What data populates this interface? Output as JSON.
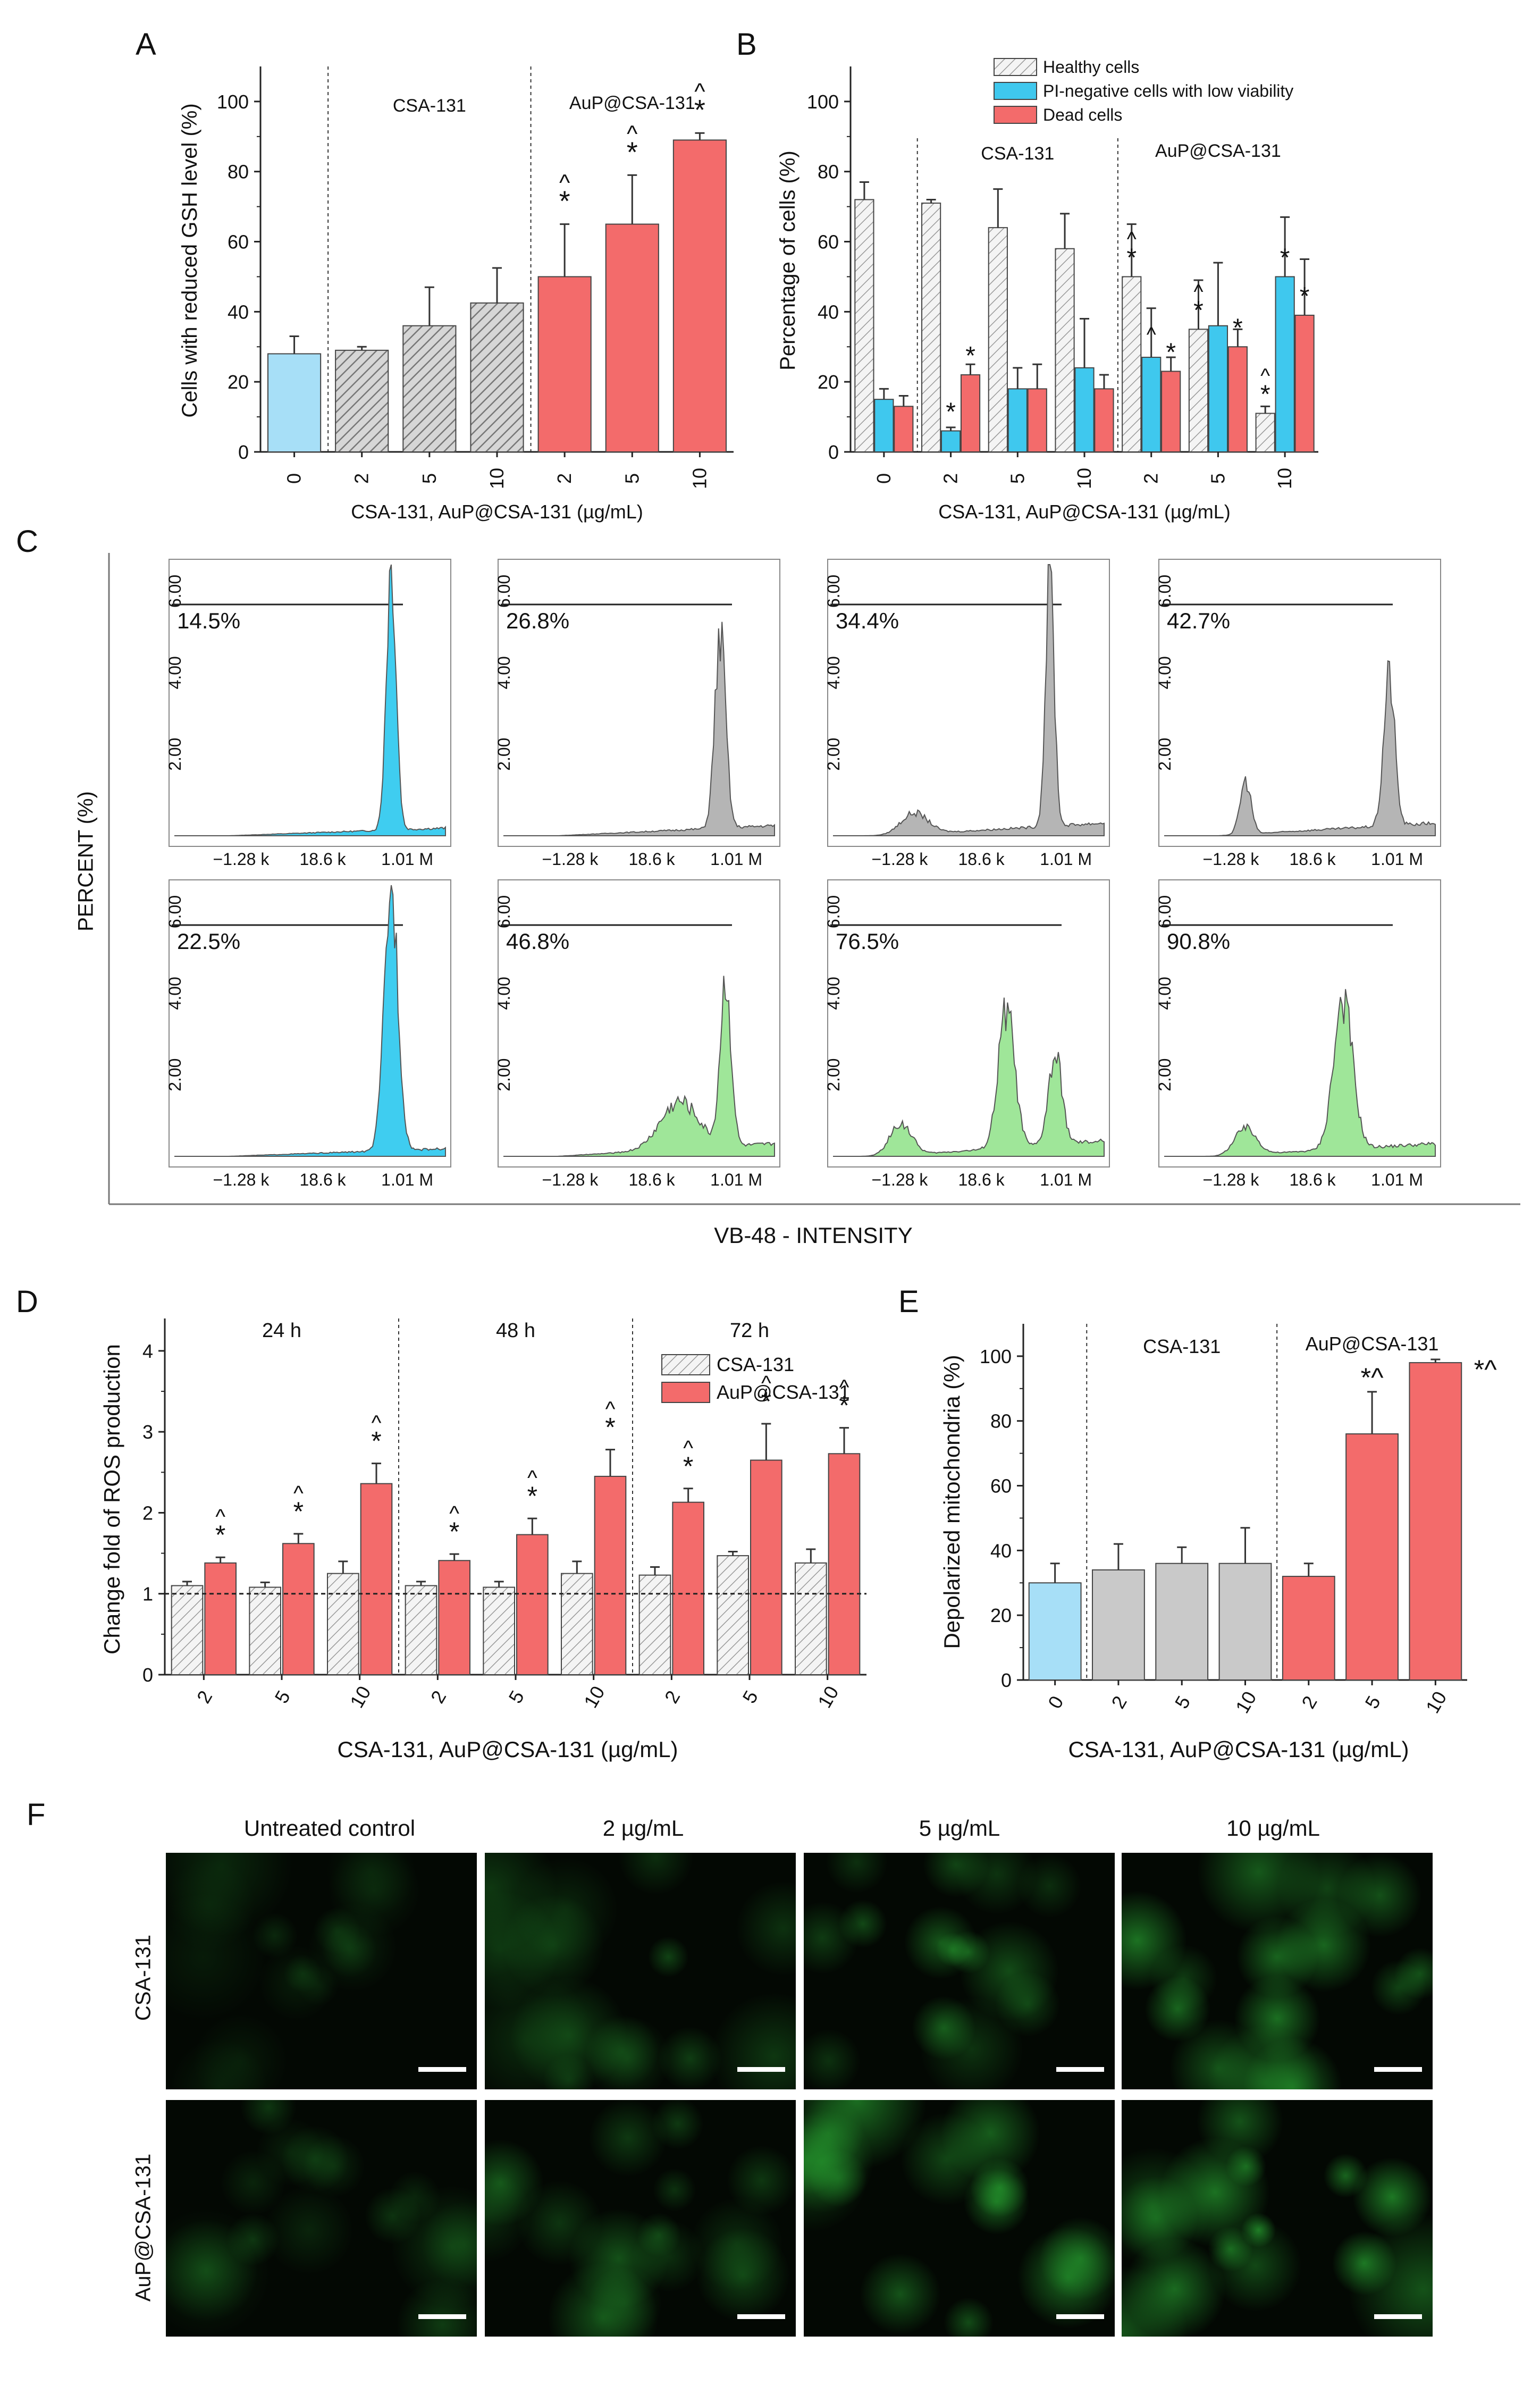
{
  "panels": {
    "A": "A",
    "B": "B",
    "C": "C",
    "D": "D",
    "E": "E",
    "F": "F"
  },
  "colors": {
    "control_blue": "#a7dff7",
    "hatch_gray": "#c9c9c9",
    "red": "#f36b6b",
    "cyan": "#3fc8ee",
    "flow_cyan": "#3fcdf0",
    "flow_gray": "#b5b5b5",
    "flow_green": "#9fe699",
    "fluor_green": "#2fc23a"
  },
  "chart_data": [
    {
      "id": "A",
      "type": "bar",
      "title": "",
      "ylabel": "Cells with reduced GSH level (%)",
      "xlabel": "CSA-131, AuP@CSA-131 (µg/mL)",
      "ylim": [
        0,
        110
      ],
      "yticks": [
        0,
        20,
        40,
        60,
        80,
        100
      ],
      "categories": [
        "0",
        "2",
        "5",
        "10",
        "2",
        "5",
        "10"
      ],
      "groups": [
        "control",
        "CSA-131",
        "CSA-131",
        "CSA-131",
        "AuP@CSA-131",
        "AuP@CSA-131",
        "AuP@CSA-131"
      ],
      "values": [
        28,
        29,
        36,
        42.5,
        50,
        65,
        89
      ],
      "errors": [
        5,
        1,
        11,
        10,
        15,
        14,
        2
      ],
      "marks": [
        "",
        "",
        "",
        "",
        "*^",
        "*^",
        "*^"
      ],
      "section_labels": [
        "CSA-131",
        "AuP@CSA-131"
      ]
    },
    {
      "id": "B",
      "type": "bar",
      "title": "",
      "ylabel": "Percentage of cells (%)",
      "xlabel": "CSA-131, AuP@CSA-131 (µg/mL)",
      "ylim": [
        0,
        110
      ],
      "yticks": [
        0,
        20,
        40,
        60,
        80,
        100
      ],
      "categories": [
        "0",
        "2",
        "5",
        "10",
        "2",
        "5",
        "10"
      ],
      "section_labels": [
        "CSA-131",
        "AuP@CSA-131"
      ],
      "series": [
        {
          "name": "Healthy cells",
          "values": [
            72,
            71,
            64,
            58,
            50,
            35,
            11
          ],
          "errors": [
            5,
            1,
            11,
            10,
            15,
            14,
            2
          ],
          "marks": [
            "",
            "",
            "",
            "",
            "*^",
            "*^",
            "*^"
          ]
        },
        {
          "name": "PI-negative cells with low viability",
          "values": [
            15,
            6,
            18,
            24,
            27,
            36,
            50
          ],
          "errors": [
            3,
            1,
            6,
            14,
            14,
            18,
            17
          ],
          "marks": [
            "",
            "*",
            "",
            "",
            "^",
            "",
            "*"
          ]
        },
        {
          "name": "Dead cells",
          "values": [
            13,
            22,
            18,
            18,
            23,
            30,
            39
          ],
          "errors": [
            3,
            3,
            7,
            4,
            4,
            5,
            16
          ],
          "marks": [
            "",
            "*",
            "",
            "",
            "*",
            "*",
            "*"
          ]
        }
      ]
    },
    {
      "id": "C",
      "type": "histogram",
      "title": "",
      "ylabel": "PERCENT (%)",
      "xlabel": "VB-48 - INTENSITY",
      "yticks": [
        "2.00",
        "4.00",
        "6.00"
      ],
      "xticks": [
        "−1.28 k",
        "18.6 k",
        "1.01 M"
      ],
      "plots": [
        {
          "label": "14.5%",
          "color": "cyan",
          "peaks": [
            [
              0.8,
              1.0,
              0.018
            ]
          ],
          "base": 0.03
        },
        {
          "label": "26.8%",
          "color": "gray",
          "peaks": [
            [
              0.8,
              0.72,
              0.02
            ]
          ],
          "base": 0.04
        },
        {
          "label": "34.4%",
          "color": "gray",
          "peaks": [
            [
              0.8,
              0.95,
              0.016
            ],
            [
              0.3,
              0.08,
              0.05
            ]
          ],
          "base": 0.05
        },
        {
          "label": "42.7%",
          "color": "gray",
          "peaks": [
            [
              0.83,
              0.57,
              0.02
            ],
            [
              0.3,
              0.2,
              0.02
            ]
          ],
          "base": 0.05
        },
        {
          "label": "22.5%",
          "color": "cyan",
          "peaks": [
            [
              0.8,
              1.0,
              0.025
            ]
          ],
          "base": 0.03
        },
        {
          "label": "46.8%",
          "color": "green",
          "peaks": [
            [
              0.82,
              0.62,
              0.02
            ],
            [
              0.65,
              0.18,
              0.07
            ]
          ],
          "base": 0.05
        },
        {
          "label": "76.5%",
          "color": "green",
          "peaks": [
            [
              0.64,
              0.52,
              0.03
            ],
            [
              0.82,
              0.33,
              0.025
            ],
            [
              0.25,
              0.12,
              0.04
            ]
          ],
          "base": 0.06
        },
        {
          "label": "90.8%",
          "color": "green",
          "peaks": [
            [
              0.66,
              0.56,
              0.035
            ],
            [
              0.3,
              0.1,
              0.04
            ]
          ],
          "base": 0.05
        }
      ]
    },
    {
      "id": "D",
      "type": "bar",
      "title": "",
      "ylabel": "Change fold of ROS production",
      "xlabel": "CSA-131, AuP@CSA-131 (µg/mL)",
      "ylim": [
        0,
        4.4
      ],
      "yticks": [
        0,
        1,
        2,
        3,
        4
      ],
      "reference_line": 1,
      "categories": [
        "2",
        "5",
        "10",
        "2",
        "5",
        "10",
        "2",
        "5",
        "10"
      ],
      "timepoints": [
        "24 h",
        "48 h",
        "72 h"
      ],
      "series": [
        {
          "name": "CSA-131",
          "values": [
            1.1,
            1.08,
            1.25,
            1.1,
            1.08,
            1.25,
            1.23,
            1.47,
            1.38
          ],
          "errors": [
            0.05,
            0.06,
            0.15,
            0.05,
            0.07,
            0.15,
            0.1,
            0.05,
            0.17
          ],
          "marks": [
            "",
            "",
            "",
            "",
            "",
            "",
            "",
            "",
            ""
          ]
        },
        {
          "name": "AuP@CSA-131",
          "values": [
            1.38,
            1.62,
            2.36,
            1.41,
            1.73,
            2.45,
            2.13,
            2.65,
            2.73
          ],
          "errors": [
            0.07,
            0.12,
            0.25,
            0.08,
            0.2,
            0.33,
            0.17,
            0.45,
            0.32
          ],
          "marks": [
            "*^",
            "*^",
            "*^",
            "*^",
            "*^",
            "*^",
            "*^",
            "*^",
            "*^"
          ]
        }
      ]
    },
    {
      "id": "E",
      "type": "bar",
      "title": "",
      "ylabel": "Depolarized mitochondria (%)",
      "xlabel": "CSA-131, AuP@CSA-131 (µg/mL)",
      "ylim": [
        0,
        110
      ],
      "yticks": [
        0,
        20,
        40,
        60,
        80,
        100
      ],
      "categories": [
        "0",
        "2",
        "5",
        "10",
        "2",
        "5",
        "10"
      ],
      "groups": [
        "control",
        "CSA-131",
        "CSA-131",
        "CSA-131",
        "AuP@CSA-131",
        "AuP@CSA-131",
        "AuP@CSA-131"
      ],
      "values": [
        30,
        34,
        36,
        36,
        32,
        76,
        98
      ],
      "errors": [
        6,
        8,
        5,
        11,
        4,
        13,
        1
      ],
      "marks": [
        "",
        "",
        "",
        "",
        "",
        "*^",
        "*^"
      ],
      "section_labels": [
        "CSA-131",
        "AuP@CSA-131"
      ]
    }
  ],
  "micrographs": {
    "columns": [
      "Untreated control",
      "2 µg/mL",
      "5 µg/mL",
      "10 µg/mL"
    ],
    "rows": [
      "CSA-131",
      "AuP@CSA-131"
    ]
  }
}
